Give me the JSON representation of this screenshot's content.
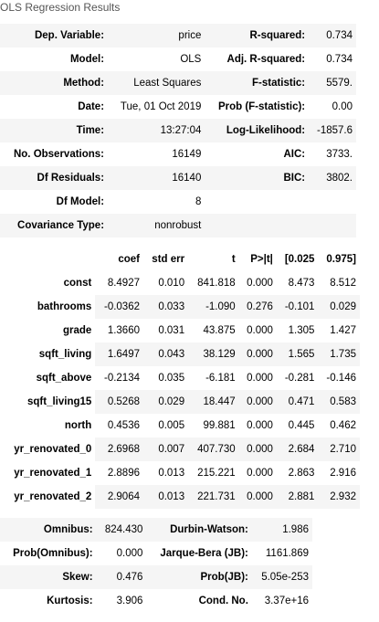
{
  "caption": "OLS Regression Results",
  "summary": [
    {
      "l1": "Dep. Variable:",
      "v1": "price",
      "l2": "R-squared:",
      "v2": "0.734"
    },
    {
      "l1": "Model:",
      "v1": "OLS",
      "l2": "Adj. R-squared:",
      "v2": "0.734"
    },
    {
      "l1": "Method:",
      "v1": "Least Squares",
      "l2": "F-statistic:",
      "v2": "5579."
    },
    {
      "l1": "Date:",
      "v1": "Tue, 01 Oct 2019",
      "l2": "Prob (F-statistic):",
      "v2": "0.00"
    },
    {
      "l1": "Time:",
      "v1": "13:27:04",
      "l2": "Log-Likelihood:",
      "v2": "-1857.6"
    },
    {
      "l1": "No. Observations:",
      "v1": "16149",
      "l2": "AIC:",
      "v2": "3733."
    },
    {
      "l1": "Df Residuals:",
      "v1": "16140",
      "l2": "BIC:",
      "v2": "3802."
    },
    {
      "l1": "Df Model:",
      "v1": "8",
      "l2": "",
      "v2": ""
    },
    {
      "l1": "Covariance Type:",
      "v1": "nonrobust",
      "l2": "",
      "v2": ""
    }
  ],
  "coef_headers": [
    "",
    "coef",
    "std err",
    "t",
    "P>|t|",
    "[0.025",
    "0.975]"
  ],
  "coef_rows": [
    [
      "const",
      "8.4927",
      "0.010",
      "841.818",
      "0.000",
      "8.473",
      "8.512"
    ],
    [
      "bathrooms",
      "-0.0362",
      "0.033",
      "-1.090",
      "0.276",
      "-0.101",
      "0.029"
    ],
    [
      "grade",
      "1.3660",
      "0.031",
      "43.875",
      "0.000",
      "1.305",
      "1.427"
    ],
    [
      "sqft_living",
      "1.6497",
      "0.043",
      "38.129",
      "0.000",
      "1.565",
      "1.735"
    ],
    [
      "sqft_above",
      "-0.2134",
      "0.035",
      "-6.181",
      "0.000",
      "-0.281",
      "-0.146"
    ],
    [
      "sqft_living15",
      "0.5268",
      "0.029",
      "18.447",
      "0.000",
      "0.471",
      "0.583"
    ],
    [
      "north",
      "0.4536",
      "0.005",
      "99.881",
      "0.000",
      "0.445",
      "0.462"
    ],
    [
      "yr_renovated_0",
      "2.6968",
      "0.007",
      "407.730",
      "0.000",
      "2.684",
      "2.710"
    ],
    [
      "yr_renovated_1",
      "2.8896",
      "0.013",
      "215.221",
      "0.000",
      "2.863",
      "2.916"
    ],
    [
      "yr_renovated_2",
      "2.9064",
      "0.013",
      "221.731",
      "0.000",
      "2.881",
      "2.932"
    ]
  ],
  "diagnostics": [
    {
      "l1": "Omnibus:",
      "v1": "824.430",
      "l2": "Durbin-Watson:",
      "v2": "1.986"
    },
    {
      "l1": "Prob(Omnibus):",
      "v1": "0.000",
      "l2": "Jarque-Bera (JB):",
      "v2": "1161.869"
    },
    {
      "l1": "Skew:",
      "v1": "0.476",
      "l2": "Prob(JB):",
      "v2": "5.05e-253"
    },
    {
      "l1": "Kurtosis:",
      "v1": "3.906",
      "l2": "Cond. No.",
      "v2": "3.37e+16"
    }
  ]
}
